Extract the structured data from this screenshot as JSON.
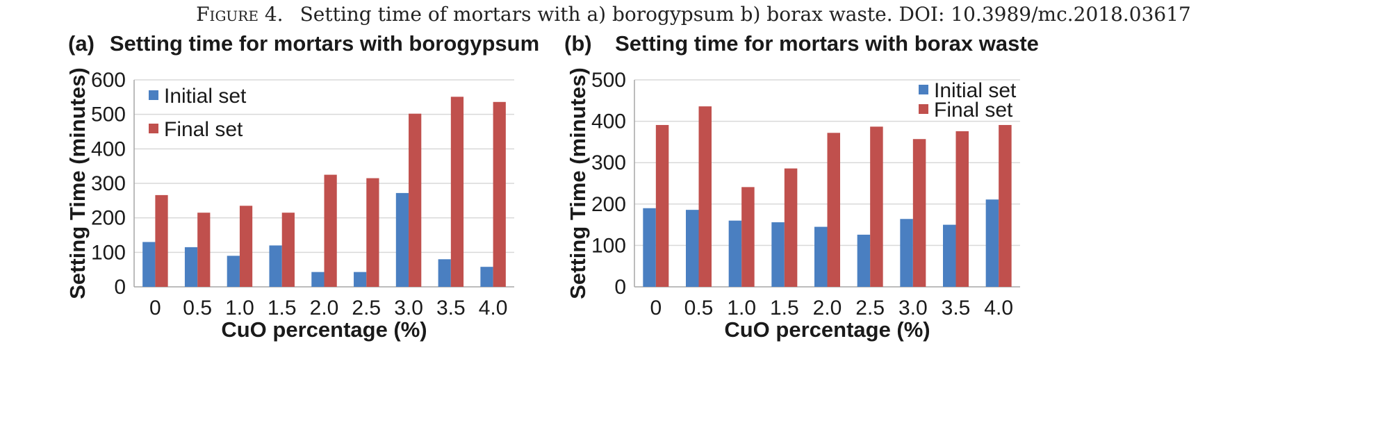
{
  "figure_caption": {
    "prefix": "Figure 4.",
    "text": "Setting time of mortars with a) borogypsum b) borax waste. DOI: 10.3989/mc.2018.03617"
  },
  "colors": {
    "initial": "#4a7fc1",
    "final": "#c0504d",
    "grid": "#d9d9d9",
    "axis": "#a6a6a6"
  },
  "chart_data": [
    {
      "type": "bar",
      "panel_label": "(a)",
      "title": "Setting time for mortars with borogypsum",
      "xlabel": "CuO percentage (%)",
      "ylabel": "Setting Time (minutes)",
      "categories": [
        "0",
        "0.5",
        "1.0",
        "1.5",
        "2.0",
        "2.5",
        "3.0",
        "3.5",
        "4.0"
      ],
      "ylim": [
        0,
        600
      ],
      "yticks": [
        0,
        100,
        200,
        300,
        400,
        500,
        600
      ],
      "grid": true,
      "legend_position": "top-left",
      "series": [
        {
          "name": "Initial set",
          "values": [
            130,
            115,
            90,
            120,
            43,
            43,
            272,
            80,
            58
          ]
        },
        {
          "name": "Final set",
          "values": [
            266,
            215,
            235,
            215,
            325,
            315,
            502,
            551,
            536
          ]
        }
      ]
    },
    {
      "type": "bar",
      "panel_label": "(b)",
      "title": "Setting time for mortars with borax waste",
      "xlabel": "CuO percentage (%)",
      "ylabel": "Setting Time (minutes)",
      "categories": [
        "0",
        "0.5",
        "1.0",
        "1.5",
        "2.0",
        "2.5",
        "3.0",
        "3.5",
        "4.0"
      ],
      "ylim": [
        0,
        500
      ],
      "yticks": [
        0,
        100,
        200,
        300,
        400,
        500
      ],
      "grid": true,
      "legend_position": "top-right",
      "series": [
        {
          "name": "Initial set",
          "values": [
            190,
            186,
            160,
            156,
            145,
            126,
            164,
            150,
            211
          ]
        },
        {
          "name": "Final set",
          "values": [
            391,
            436,
            241,
            286,
            372,
            387,
            357,
            376,
            391
          ]
        }
      ]
    }
  ]
}
